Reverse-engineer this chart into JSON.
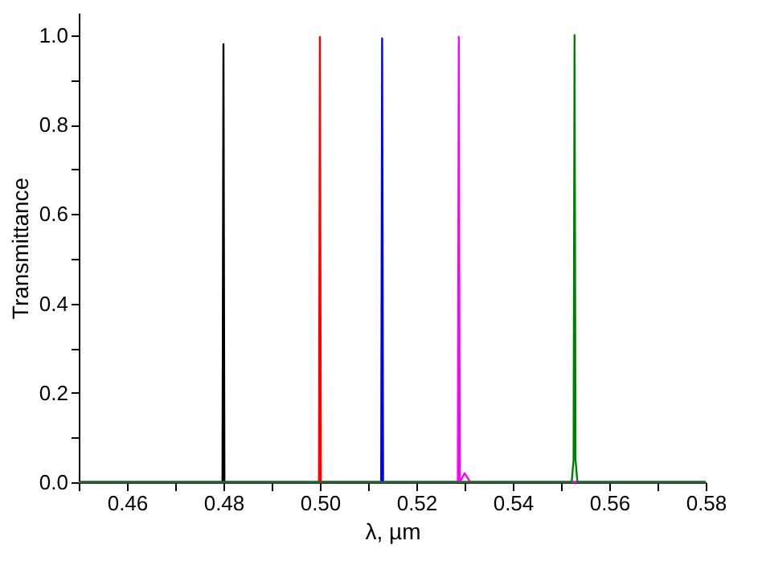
{
  "chart_data": {
    "type": "line",
    "xlabel": "λ, µm",
    "ylabel": "Transmittance",
    "xlim": [
      0.45,
      0.58
    ],
    "ylim": [
      0,
      1.05
    ],
    "xticks": [
      {
        "value": 0.45,
        "label": null
      },
      {
        "value": 0.46,
        "label": "0.46"
      },
      {
        "value": 0.47,
        "label": null
      },
      {
        "value": 0.48,
        "label": "0.48"
      },
      {
        "value": 0.49,
        "label": null
      },
      {
        "value": 0.5,
        "label": "0.50"
      },
      {
        "value": 0.51,
        "label": null
      },
      {
        "value": 0.52,
        "label": "0.52"
      },
      {
        "value": 0.53,
        "label": null
      },
      {
        "value": 0.54,
        "label": "0.54"
      },
      {
        "value": 0.55,
        "label": null
      },
      {
        "value": 0.56,
        "label": "0.56"
      },
      {
        "value": 0.57,
        "label": null
      },
      {
        "value": 0.58,
        "label": "0.58"
      }
    ],
    "yticks": [
      {
        "value": 0,
        "label": "0.0"
      },
      {
        "value": 0.1,
        "label": null
      },
      {
        "value": 0.2,
        "label": "0.2"
      },
      {
        "value": 0.3,
        "label": null
      },
      {
        "value": 0.4,
        "label": "0.4"
      },
      {
        "value": 0.5,
        "label": null
      },
      {
        "value": 0.6,
        "label": "0.6"
      },
      {
        "value": 0.7,
        "label": null
      },
      {
        "value": 0.8,
        "label": "0.8"
      },
      {
        "value": 0.9,
        "label": null
      },
      {
        "value": 1,
        "label": "1.0"
      }
    ],
    "grid": false,
    "legend": false,
    "marker": "none",
    "line_style": "solid",
    "series": [
      {
        "color": "#000000",
        "x": [
          0.45,
          0.4798,
          0.48,
          0.4802,
          0.58
        ],
        "values": [
          0,
          0,
          0.98,
          0,
          0
        ]
      },
      {
        "color": "#ff0000",
        "x": [
          0.45,
          0.4998,
          0.5,
          0.5002,
          0.58
        ],
        "values": [
          0,
          0,
          0.996,
          0,
          0
        ]
      },
      {
        "color": "#0000ff",
        "x": [
          0.45,
          0.5127,
          0.5129,
          0.5131,
          0.58
        ],
        "values": [
          0,
          0,
          0.993,
          0,
          0
        ]
      },
      {
        "color": "#ff00ff",
        "x": [
          0.45,
          0.5286,
          0.5288,
          0.529,
          0.53,
          0.5312,
          0.58
        ],
        "values": [
          0,
          0,
          0.996,
          0,
          0.02,
          0,
          0
        ]
      },
      {
        "color": "#008000",
        "x": [
          0.45,
          0.5522,
          0.5526,
          0.5528,
          0.553,
          0.5534,
          0.58
        ],
        "values": [
          0,
          0,
          0.05,
          1.0,
          0.05,
          0,
          0
        ]
      }
    ]
  }
}
